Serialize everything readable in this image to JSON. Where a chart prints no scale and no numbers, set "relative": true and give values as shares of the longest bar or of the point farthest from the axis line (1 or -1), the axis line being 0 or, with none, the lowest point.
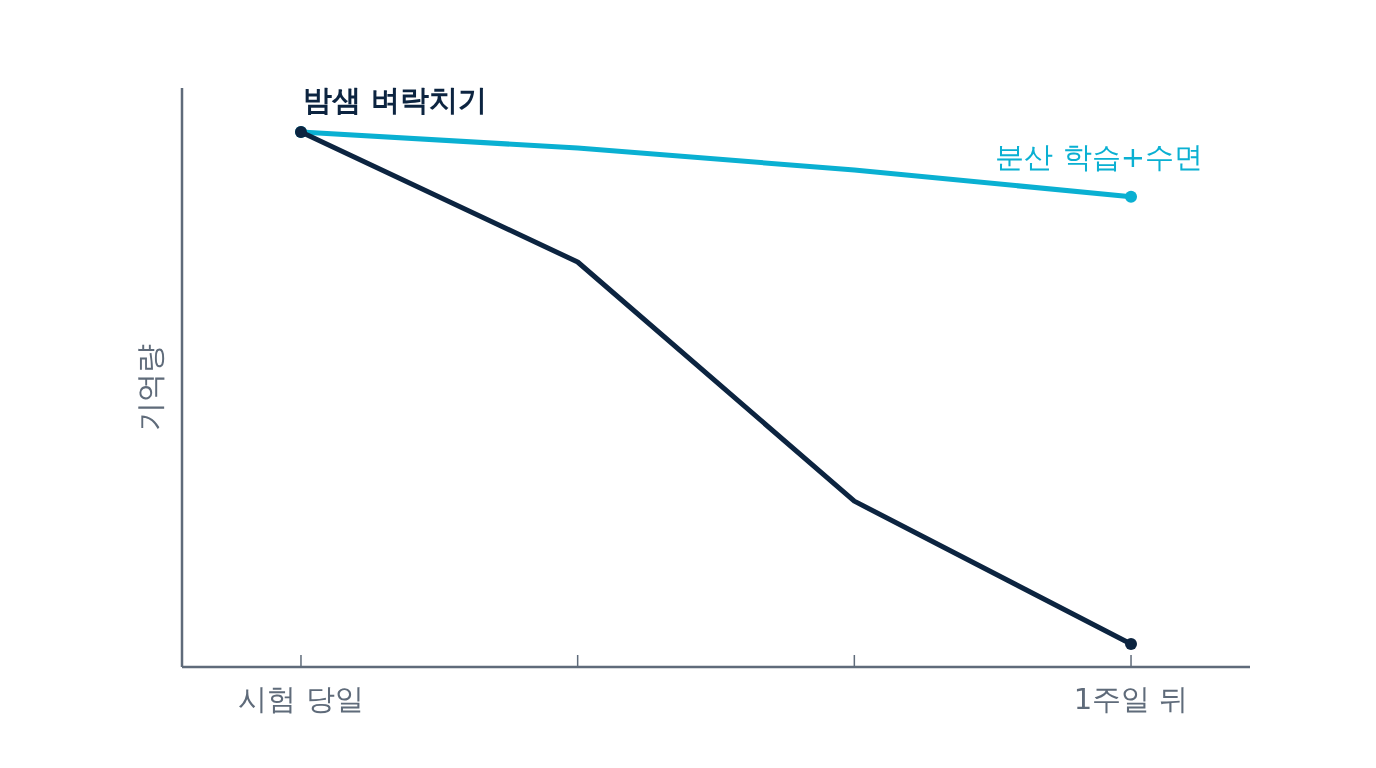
{
  "chart_data": {
    "type": "line",
    "relative": true,
    "ylabel": "기억량",
    "categories": [
      "시험 당일",
      null,
      null,
      "1주일 뒤"
    ],
    "marker": "circle",
    "line_style": "solid",
    "grid": false,
    "legend": false,
    "series": [
      {
        "name": "분산 학습+수면",
        "color": "#0ab0d2",
        "values": [
          1,
          0.97,
          0.929,
          0.879
        ]
      },
      {
        "name": "밤샘 벼락치기",
        "color": "#0c2440",
        "values": [
          1,
          0.757,
          0.31,
          0.043
        ]
      }
    ]
  }
}
